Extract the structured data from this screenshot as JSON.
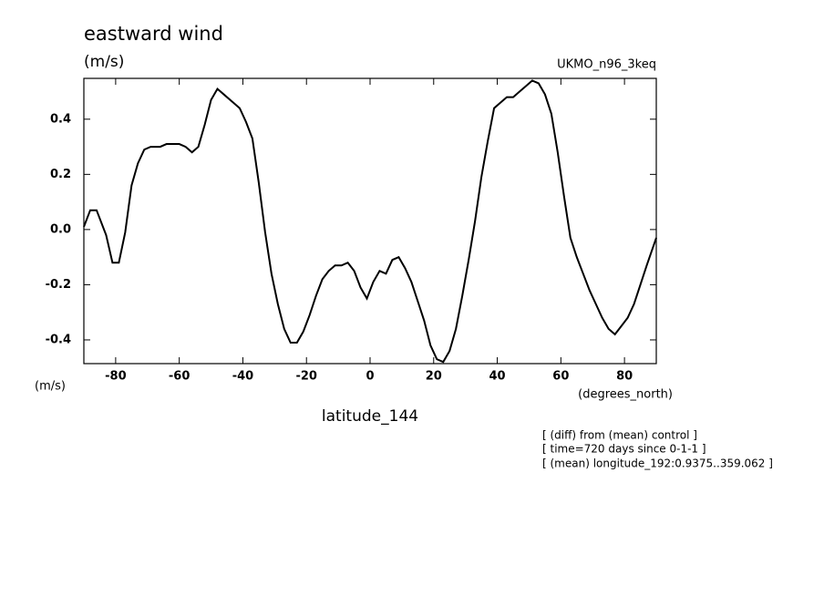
{
  "chart_data": {
    "type": "line",
    "title": "eastward wind",
    "units": "(m/s)",
    "model": "UKMO_n96_3keq",
    "y_axis_unit": "(m/s)",
    "x_axis_unit": "(degrees_north)",
    "x_label": "latitude_144",
    "notes": [
      "[ (diff) from (mean) control ]",
      "[ time=720 days since 0-1-1 ]",
      "[ (mean) longitude_192:0.9375..359.062 ]"
    ],
    "xlim": [
      -90,
      90
    ],
    "ylim": [
      -0.486,
      0.548
    ],
    "xticks": [
      -80,
      -60,
      -40,
      -20,
      0,
      20,
      40,
      60,
      80
    ],
    "yticks": [
      -0.4,
      -0.2,
      {
        "value": 0,
        "label": "0.0"
      },
      0.2,
      0.4
    ],
    "series": [
      {
        "name": "eastward wind",
        "color": "#000000",
        "x": [
          -90,
          -88,
          -86,
          -83,
          -81,
          -79,
          -77,
          -75,
          -73,
          -71,
          -69,
          -66,
          -64,
          -60,
          -58,
          -56,
          -54,
          -52,
          -50,
          -48,
          -46,
          -43,
          -41,
          -39,
          -37,
          -35,
          -33,
          -31,
          -29,
          -27,
          -25,
          -23,
          -21,
          -19,
          -17,
          -15,
          -13,
          -11,
          -9,
          -7,
          -5,
          -3,
          -1,
          1,
          3,
          5,
          7,
          9,
          11,
          13,
          15,
          17,
          19,
          21,
          23,
          25,
          27,
          29,
          31,
          33,
          35,
          37,
          39,
          41,
          43,
          45,
          47,
          49,
          51,
          53,
          55,
          57,
          59,
          61,
          63,
          65,
          67,
          69,
          71,
          73,
          75,
          77,
          79,
          81,
          83,
          85,
          87,
          90
        ],
        "values": [
          0.01,
          0.07,
          0.07,
          -0.02,
          -0.12,
          -0.12,
          -0.01,
          0.16,
          0.24,
          0.29,
          0.3,
          0.3,
          0.31,
          0.31,
          0.3,
          0.28,
          0.3,
          0.38,
          0.47,
          0.51,
          0.49,
          0.46,
          0.44,
          0.39,
          0.33,
          0.17,
          -0.01,
          -0.16,
          -0.27,
          -0.36,
          -0.41,
          -0.41,
          -0.37,
          -0.31,
          -0.24,
          -0.18,
          -0.15,
          -0.13,
          -0.13,
          -0.12,
          -0.15,
          -0.21,
          -0.25,
          -0.19,
          -0.15,
          -0.16,
          -0.11,
          -0.1,
          -0.14,
          -0.19,
          -0.26,
          -0.33,
          -0.42,
          -0.47,
          -0.48,
          -0.44,
          -0.36,
          -0.24,
          -0.11,
          0.03,
          0.19,
          0.32,
          0.44,
          0.46,
          0.48,
          0.48,
          0.5,
          0.52,
          0.54,
          0.53,
          0.49,
          0.42,
          0.28,
          0.12,
          -0.03,
          -0.1,
          -0.16,
          -0.22,
          -0.27,
          -0.32,
          -0.36,
          -0.38,
          -0.35,
          -0.32,
          -0.27,
          -0.2,
          -0.13,
          -0.03
        ]
      }
    ]
  }
}
